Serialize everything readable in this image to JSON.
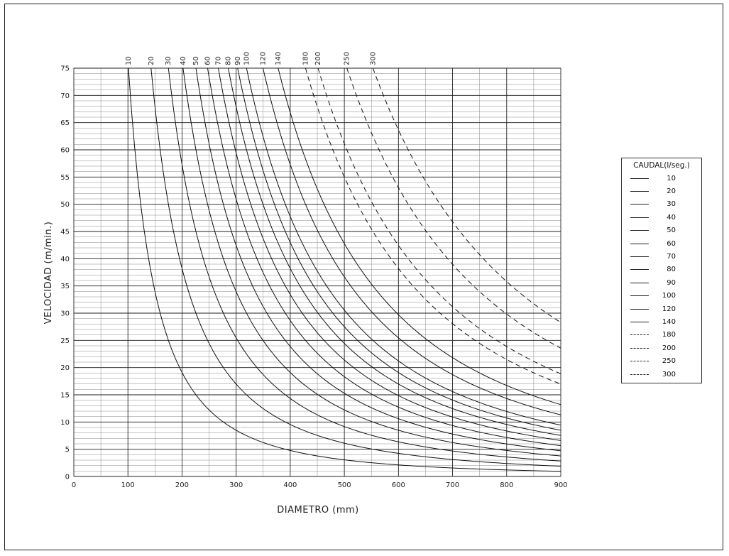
{
  "chart_data": {
    "type": "line",
    "title": "",
    "xlabel": "DIAMETRO  (mm)",
    "ylabel": "VELOCIDAD  (m/min.)",
    "xlim": [
      0,
      900
    ],
    "ylim": [
      0,
      75
    ],
    "xticks": [
      "0",
      "100",
      "200",
      "300",
      "400",
      "500",
      "600",
      "700",
      "800",
      "900"
    ],
    "yticks": [
      "0",
      "5",
      "10",
      "15",
      "20",
      "25",
      "30",
      "35",
      "40",
      "45",
      "50",
      "55",
      "60",
      "65",
      "70",
      "75"
    ],
    "grid": true,
    "legend": {
      "title": "CAUDAL(l/seg.)",
      "placement": "right"
    },
    "series": [
      {
        "name": "10",
        "caudal": 10,
        "dashed": false
      },
      {
        "name": "20",
        "caudal": 20,
        "dashed": false
      },
      {
        "name": "30",
        "caudal": 30,
        "dashed": false
      },
      {
        "name": "40",
        "caudal": 40,
        "dashed": false
      },
      {
        "name": "50",
        "caudal": 50,
        "dashed": false
      },
      {
        "name": "60",
        "caudal": 60,
        "dashed": false
      },
      {
        "name": "70",
        "caudal": 70,
        "dashed": false
      },
      {
        "name": "80",
        "caudal": 80,
        "dashed": false
      },
      {
        "name": "90",
        "caudal": 90,
        "dashed": false
      },
      {
        "name": "100",
        "caudal": 100,
        "dashed": false
      },
      {
        "name": "120",
        "caudal": 120,
        "dashed": false
      },
      {
        "name": "140",
        "caudal": 140,
        "dashed": false
      },
      {
        "name": "180",
        "caudal": 180,
        "dashed": true
      },
      {
        "name": "200",
        "caudal": 200,
        "dashed": true
      },
      {
        "name": "250",
        "caudal": 250,
        "dashed": true
      },
      {
        "name": "300",
        "caudal": 300,
        "dashed": true
      }
    ]
  }
}
